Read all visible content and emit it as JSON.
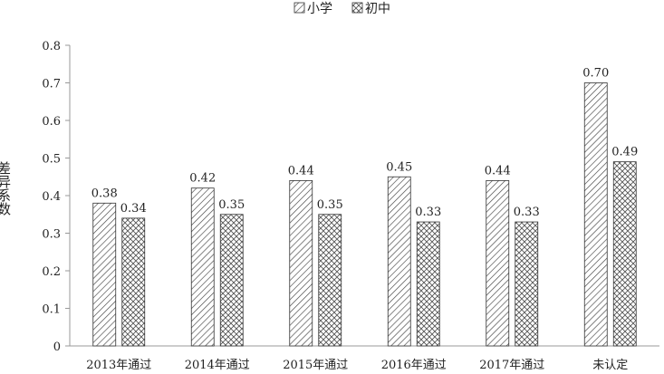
{
  "chart_data": {
    "type": "bar",
    "categories": [
      "2013年通过",
      "2014年通过",
      "2015年通过",
      "2016年通过",
      "2017年通过",
      "未认定"
    ],
    "series": [
      {
        "name": "小学",
        "values": [
          0.38,
          0.42,
          0.44,
          0.45,
          0.44,
          0.7
        ],
        "labels": [
          "0.38",
          "0.42",
          "0.44",
          "0.45",
          "0.44",
          "0.70"
        ],
        "pattern": "diagonal-lines"
      },
      {
        "name": "初中",
        "values": [
          0.34,
          0.35,
          0.35,
          0.33,
          0.33,
          0.49
        ],
        "labels": [
          "0.34",
          "0.35",
          "0.35",
          "0.33",
          "0.33",
          "0.49"
        ],
        "pattern": "crosshatch"
      }
    ],
    "title": "",
    "xlabel": "",
    "ylabel": "差异系数",
    "ylim": [
      0,
      0.8
    ],
    "yticks": [
      "0",
      "0.1",
      "0.2",
      "0.3",
      "0.4",
      "0.5",
      "0.6",
      "0.7",
      "0.8"
    ],
    "grid": false,
    "legend": "top-center",
    "colors": {
      "bar_stroke": "#333333",
      "axis": "#999999",
      "pattern": "#444444"
    }
  }
}
